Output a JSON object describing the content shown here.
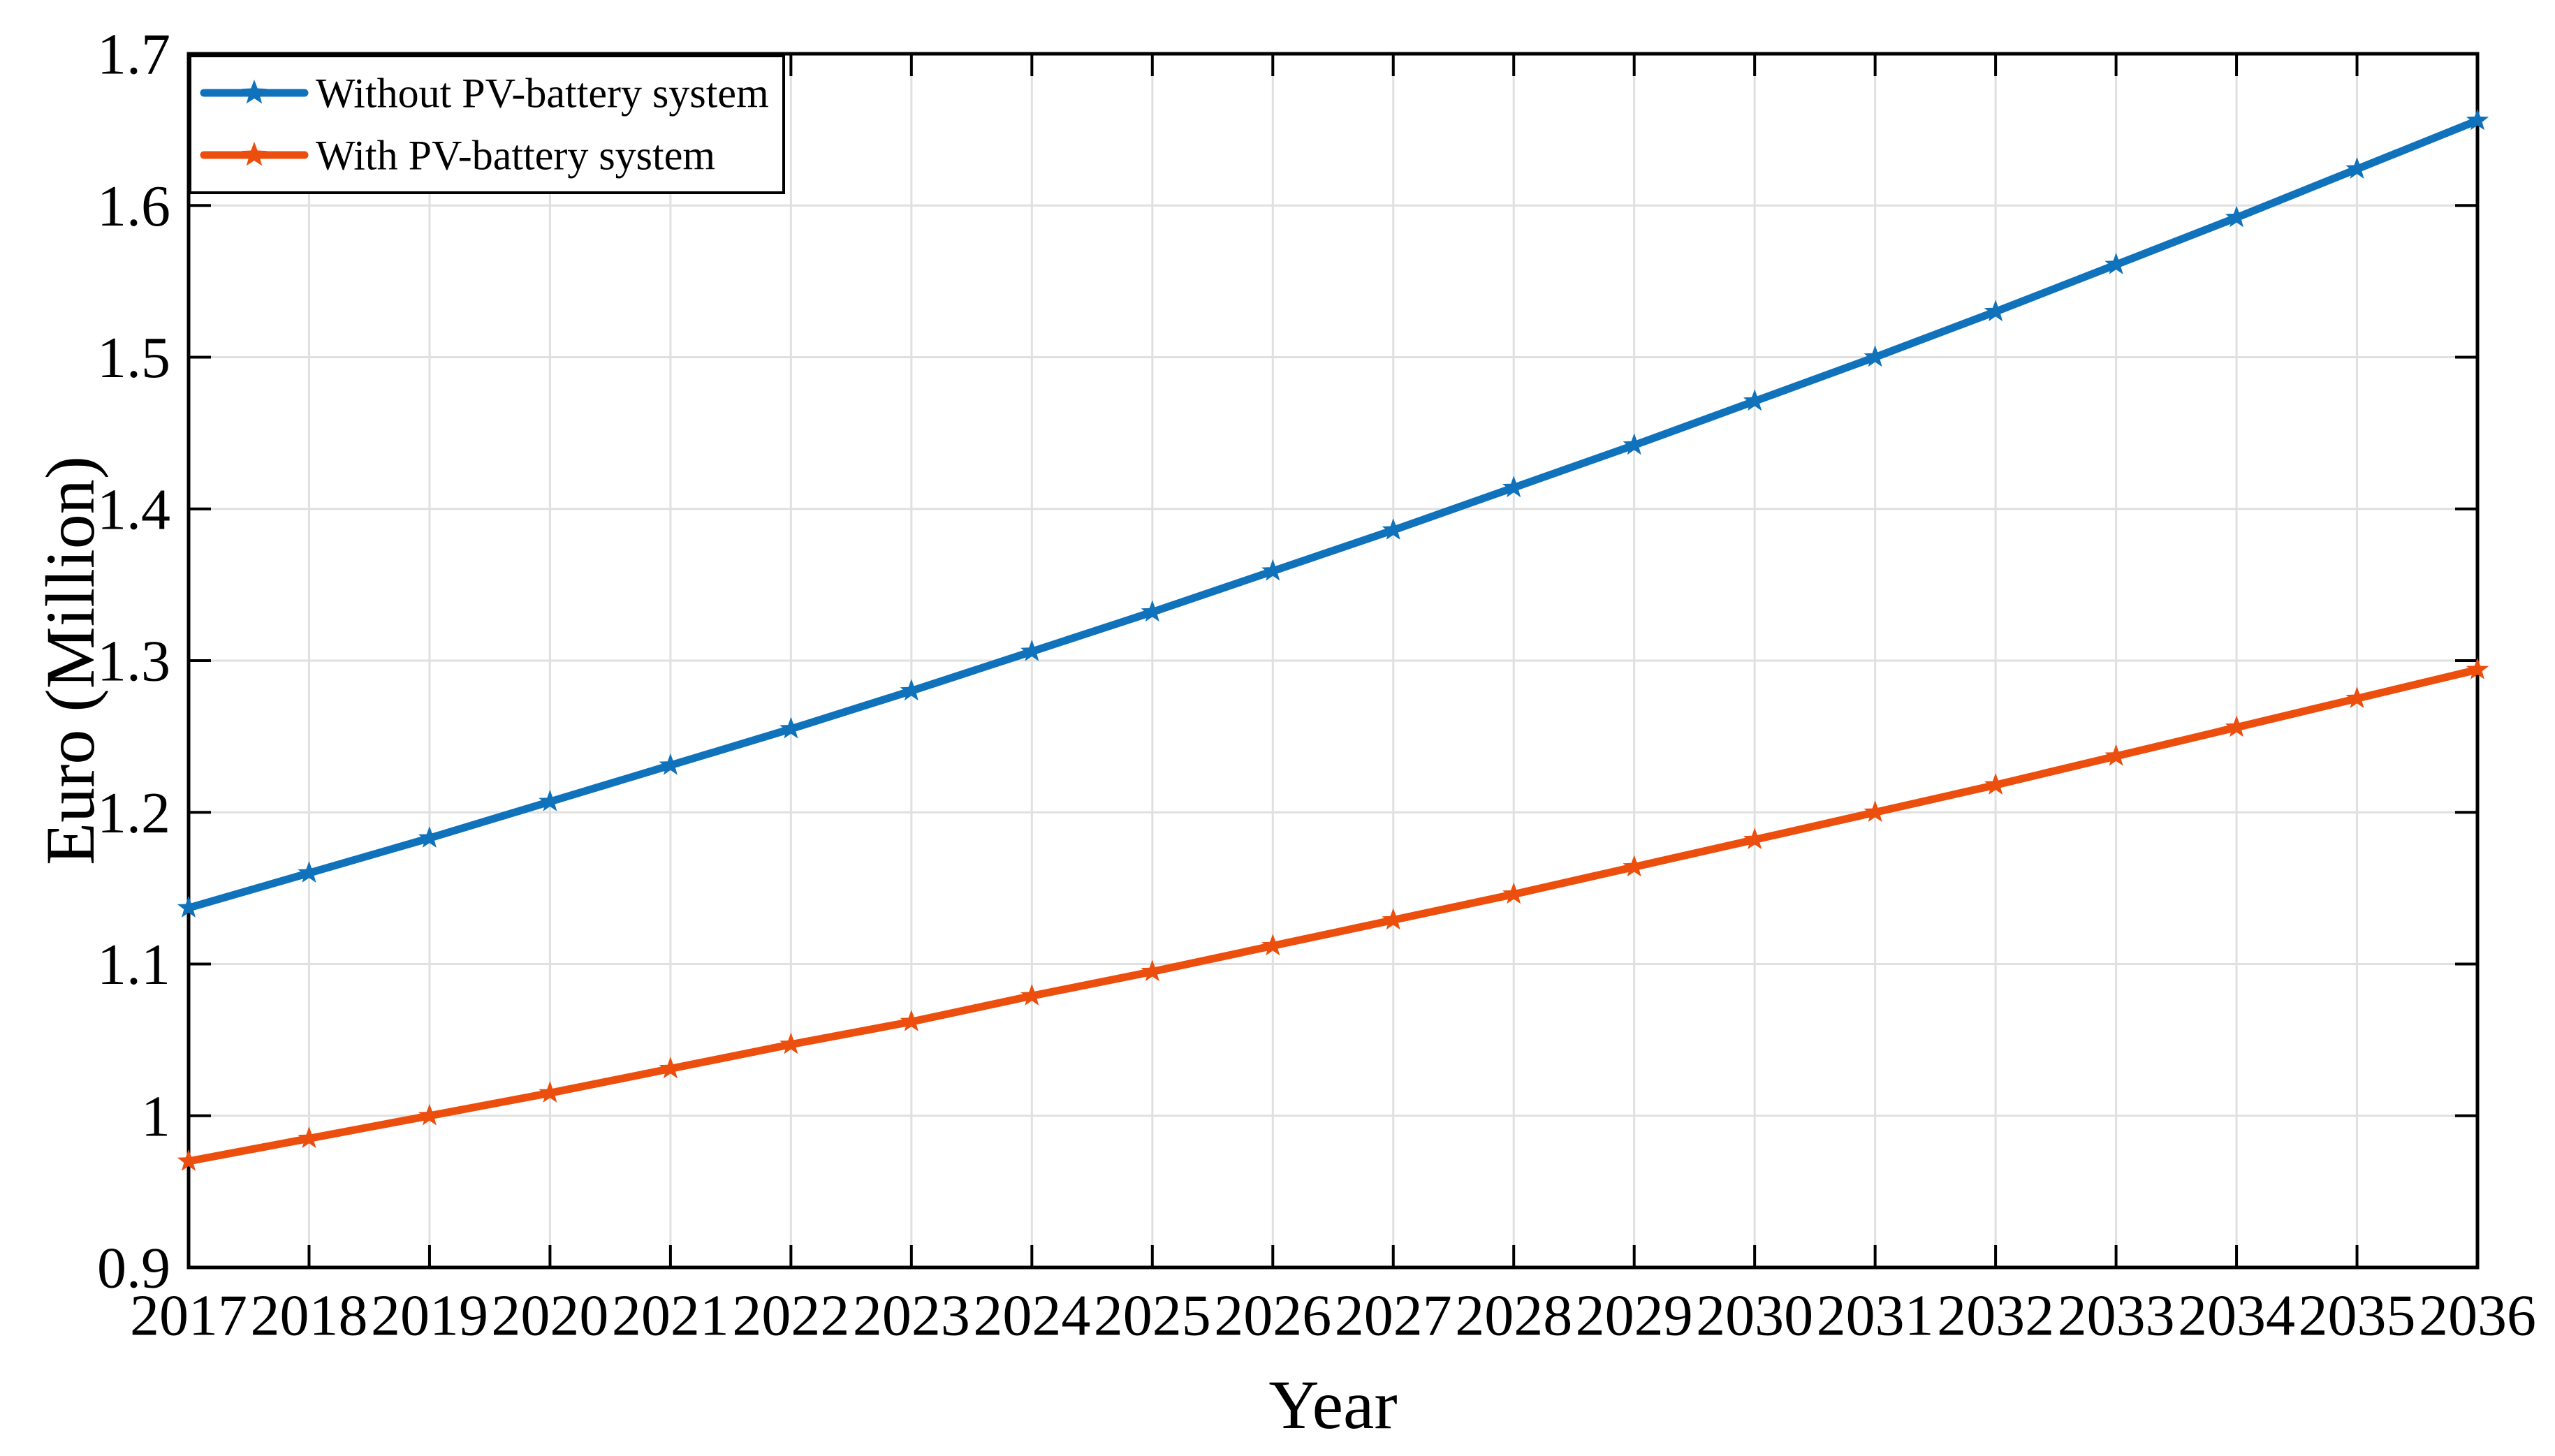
{
  "figure": {
    "background": "#ffffff"
  },
  "chart_data": {
    "type": "line",
    "title": "",
    "xlabel": "Year",
    "ylabel": "Euro (Million)",
    "xlim": [
      2017,
      2036
    ],
    "ylim": [
      0.9,
      1.7
    ],
    "grid": true,
    "box": true,
    "tick_direction": "in",
    "legend_position": "northwest",
    "x": [
      2017,
      2018,
      2019,
      2020,
      2021,
      2022,
      2023,
      2024,
      2025,
      2026,
      2027,
      2028,
      2029,
      2030,
      2031,
      2032,
      2033,
      2034,
      2035,
      2036
    ],
    "x_tick_labels": [
      "2017",
      "2018",
      "2019",
      "2020",
      "2021",
      "2022",
      "2023",
      "2024",
      "2025",
      "2026",
      "2027",
      "2028",
      "2029",
      "2030",
      "2031",
      "2032",
      "2033",
      "2034",
      "2035",
      "2036"
    ],
    "y_ticks": [
      0.9,
      1.0,
      1.1,
      1.2,
      1.3,
      1.4,
      1.5,
      1.6,
      1.7
    ],
    "y_tick_labels": [
      "0.9",
      "1",
      "1.1",
      "1.2",
      "1.3",
      "1.4",
      "1.5",
      "1.6",
      "1.7"
    ],
    "series": [
      {
        "name": "Without PV-battery system",
        "color": "#0f72bb",
        "marker": "pentagram",
        "values": [
          1.137,
          1.16,
          1.183,
          1.207,
          1.231,
          1.255,
          1.28,
          1.306,
          1.332,
          1.359,
          1.386,
          1.414,
          1.442,
          1.471,
          1.5,
          1.53,
          1.561,
          1.592,
          1.624,
          1.656
        ]
      },
      {
        "name": "With PV-battery system",
        "color": "#ec4e0e",
        "marker": "pentagram",
        "values": [
          0.97,
          0.985,
          1.0,
          1.015,
          1.031,
          1.047,
          1.062,
          1.079,
          1.095,
          1.112,
          1.129,
          1.146,
          1.164,
          1.182,
          1.2,
          1.218,
          1.237,
          1.256,
          1.275,
          1.294
        ]
      }
    ],
    "colors": {
      "grid": "#e0e0e0",
      "axis": "#000000",
      "background": "#ffffff"
    }
  }
}
